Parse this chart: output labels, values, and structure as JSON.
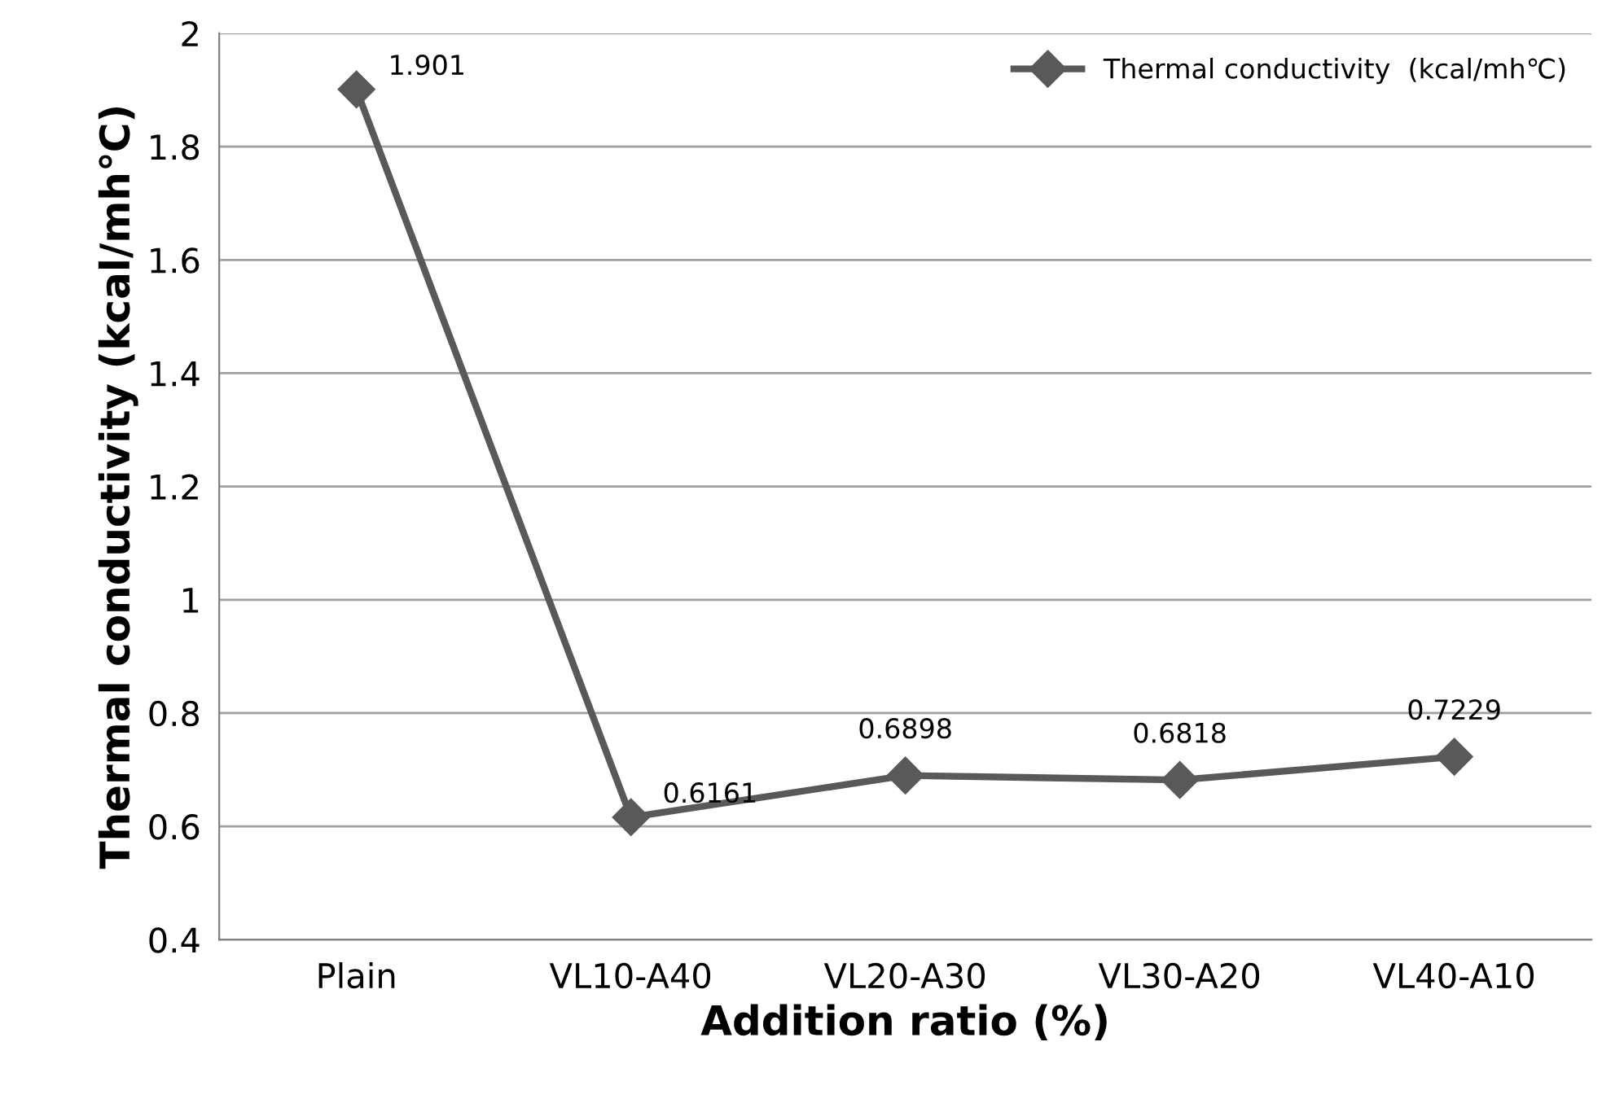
{
  "chart_data": {
    "type": "line",
    "xlabel": "Addition ratio (%)",
    "ylabel": "Thermal conductivity (kcal/mh℃)",
    "categories": [
      "Plain",
      "VL10-A40",
      "VL20-A30",
      "VL30-A20",
      "VL40-A10"
    ],
    "series": [
      {
        "name": "Thermal conductivity  (kcal/mh℃)",
        "color": "#595959",
        "values": [
          1.901,
          0.6161,
          0.6898,
          0.6818,
          0.7229
        ]
      }
    ],
    "ylim": [
      0.4,
      2
    ],
    "yticks": [
      0.4,
      0.6,
      0.8,
      1,
      1.2,
      1.4,
      1.6,
      1.8,
      2
    ],
    "grid": "y",
    "legend": "top right",
    "marker": "diamond",
    "line_style": "solid",
    "data_labels": true
  }
}
